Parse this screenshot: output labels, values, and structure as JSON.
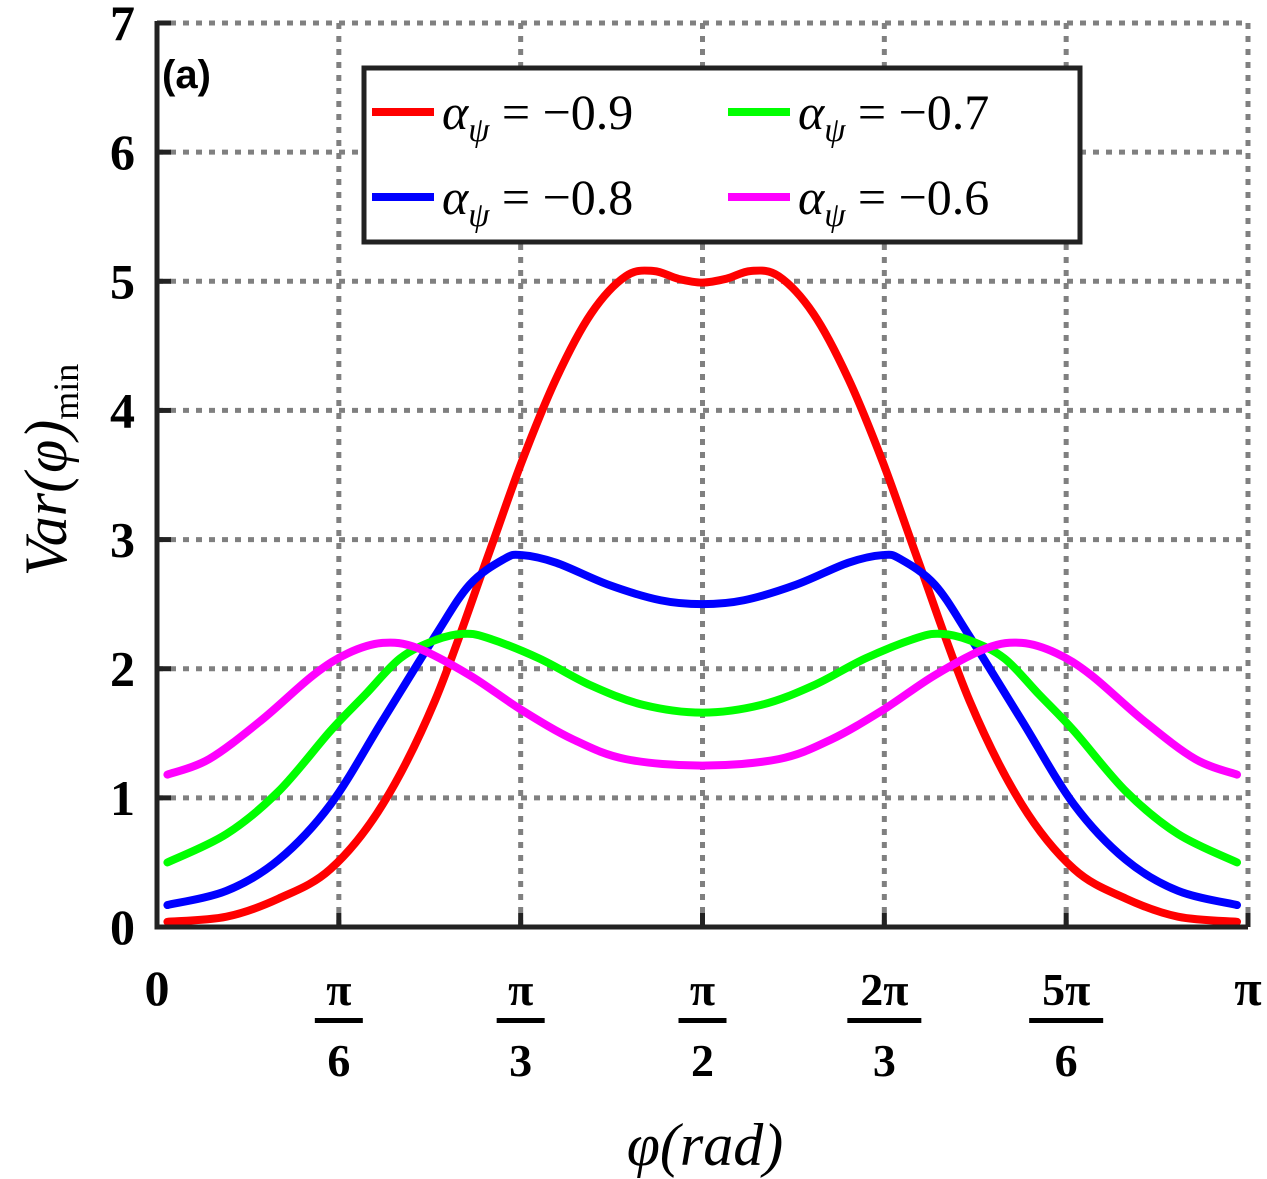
{
  "chart_data": {
    "type": "line",
    "panel_label": "(a)",
    "xlabel": "φ(rad)",
    "ylabel": {
      "main": "Var(φ)",
      "subscript": "min"
    },
    "xlim": [
      0,
      3.14159
    ],
    "ylim": [
      0,
      7
    ],
    "grid": true,
    "legend_position": "top",
    "yticks": [
      {
        "value": 0,
        "label": "0"
      },
      {
        "value": 1,
        "label": "1"
      },
      {
        "value": 2,
        "label": "2"
      },
      {
        "value": 3,
        "label": "3"
      },
      {
        "value": 4,
        "label": "4"
      },
      {
        "value": 5,
        "label": "5"
      },
      {
        "value": 6,
        "label": "6"
      },
      {
        "value": 7,
        "label": "7"
      }
    ],
    "xticks": [
      {
        "value": 0,
        "label": "0"
      },
      {
        "value": 0.5236,
        "num": "π",
        "den": "6"
      },
      {
        "value": 1.0472,
        "num": "π",
        "den": "3"
      },
      {
        "value": 1.5708,
        "num": "π",
        "den": "2"
      },
      {
        "value": 2.0944,
        "num": "2π",
        "den": "3"
      },
      {
        "value": 2.618,
        "num": "5π",
        "den": "6"
      },
      {
        "value": 3.1416,
        "label": "π"
      }
    ],
    "series": [
      {
        "name": "α_ψ = −0.9",
        "legend_label": "αψ = −0.9",
        "color": "#ff0000",
        "points": [
          [
            0.03,
            0.04
          ],
          [
            0.2,
            0.08
          ],
          [
            0.35,
            0.22
          ],
          [
            0.5,
            0.45
          ],
          [
            0.65,
            0.95
          ],
          [
            0.8,
            1.75
          ],
          [
            0.95,
            2.85
          ],
          [
            1.05,
            3.6
          ],
          [
            1.15,
            4.25
          ],
          [
            1.25,
            4.75
          ],
          [
            1.35,
            5.04
          ],
          [
            1.43,
            5.08
          ],
          [
            1.5,
            5.02
          ],
          [
            1.57,
            4.99
          ],
          [
            1.64,
            5.02
          ],
          [
            1.71,
            5.08
          ],
          [
            1.79,
            5.04
          ],
          [
            1.89,
            4.75
          ],
          [
            1.99,
            4.25
          ],
          [
            2.09,
            3.6
          ],
          [
            2.19,
            2.85
          ],
          [
            2.34,
            1.75
          ],
          [
            2.49,
            0.95
          ],
          [
            2.64,
            0.45
          ],
          [
            2.79,
            0.22
          ],
          [
            2.94,
            0.08
          ],
          [
            3.11,
            0.04
          ]
        ]
      },
      {
        "name": "α_ψ = −0.8",
        "legend_label": "αψ = −0.8",
        "color": "#0000ff",
        "points": [
          [
            0.03,
            0.17
          ],
          [
            0.2,
            0.28
          ],
          [
            0.35,
            0.52
          ],
          [
            0.5,
            0.95
          ],
          [
            0.65,
            1.6
          ],
          [
            0.8,
            2.25
          ],
          [
            0.9,
            2.65
          ],
          [
            1.0,
            2.85
          ],
          [
            1.05,
            2.88
          ],
          [
            1.15,
            2.82
          ],
          [
            1.3,
            2.65
          ],
          [
            1.45,
            2.53
          ],
          [
            1.57,
            2.5
          ],
          [
            1.69,
            2.53
          ],
          [
            1.84,
            2.65
          ],
          [
            1.99,
            2.82
          ],
          [
            2.09,
            2.88
          ],
          [
            2.14,
            2.85
          ],
          [
            2.24,
            2.65
          ],
          [
            2.34,
            2.25
          ],
          [
            2.49,
            1.6
          ],
          [
            2.64,
            0.95
          ],
          [
            2.79,
            0.52
          ],
          [
            2.94,
            0.28
          ],
          [
            3.11,
            0.17
          ]
        ]
      },
      {
        "name": "α_ψ = −0.7",
        "legend_label": "αψ = −0.7",
        "color": "#00ff00",
        "points": [
          [
            0.03,
            0.5
          ],
          [
            0.2,
            0.72
          ],
          [
            0.35,
            1.05
          ],
          [
            0.5,
            1.52
          ],
          [
            0.6,
            1.8
          ],
          [
            0.7,
            2.08
          ],
          [
            0.8,
            2.22
          ],
          [
            0.88,
            2.27
          ],
          [
            0.95,
            2.24
          ],
          [
            1.1,
            2.08
          ],
          [
            1.25,
            1.87
          ],
          [
            1.4,
            1.72
          ],
          [
            1.57,
            1.66
          ],
          [
            1.74,
            1.72
          ],
          [
            1.89,
            1.87
          ],
          [
            2.04,
            2.08
          ],
          [
            2.19,
            2.24
          ],
          [
            2.26,
            2.27
          ],
          [
            2.34,
            2.22
          ],
          [
            2.44,
            2.08
          ],
          [
            2.54,
            1.8
          ],
          [
            2.64,
            1.52
          ],
          [
            2.79,
            1.05
          ],
          [
            2.94,
            0.72
          ],
          [
            3.11,
            0.5
          ]
        ]
      },
      {
        "name": "α_ψ = −0.6",
        "legend_label": "αψ = −0.6",
        "color": "#ff00ff",
        "points": [
          [
            0.03,
            1.18
          ],
          [
            0.15,
            1.3
          ],
          [
            0.3,
            1.6
          ],
          [
            0.45,
            1.95
          ],
          [
            0.55,
            2.12
          ],
          [
            0.65,
            2.2
          ],
          [
            0.75,
            2.16
          ],
          [
            0.9,
            1.95
          ],
          [
            1.05,
            1.68
          ],
          [
            1.2,
            1.45
          ],
          [
            1.35,
            1.3
          ],
          [
            1.57,
            1.25
          ],
          [
            1.79,
            1.3
          ],
          [
            1.94,
            1.45
          ],
          [
            2.09,
            1.68
          ],
          [
            2.24,
            1.95
          ],
          [
            2.39,
            2.16
          ],
          [
            2.49,
            2.2
          ],
          [
            2.59,
            2.12
          ],
          [
            2.69,
            1.95
          ],
          [
            2.84,
            1.6
          ],
          [
            2.99,
            1.3
          ],
          [
            3.11,
            1.18
          ]
        ]
      }
    ]
  }
}
